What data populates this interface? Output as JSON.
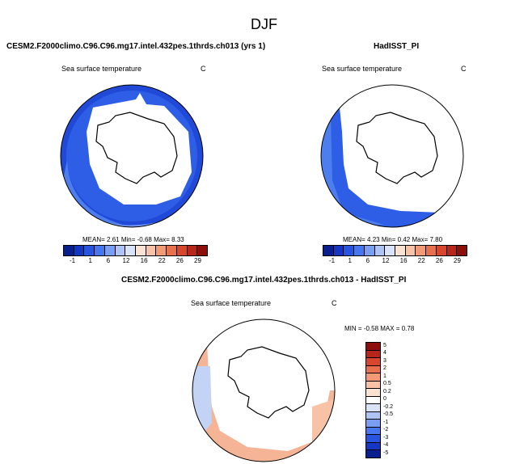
{
  "main_title": "DJF",
  "colors": {
    "land_outline": "#000000"
  },
  "panels": [
    {
      "title": "CESM2.F2000climo.C96.C96.mg17.intel.432pes.1thrds.ch013 (yrs 1)",
      "variable": "Sea surface temperature",
      "units": "C",
      "stats": {
        "mean_label": "MEAN=",
        "mean": "2.61",
        "min_label": "Min=",
        "min": "-0.68",
        "max_label": "Max=",
        "max": "8.33"
      }
    },
    {
      "title": "HadISST_PI",
      "variable": "Sea surface temperature",
      "units": "C",
      "stats": {
        "mean_label": "MEAN=",
        "mean": "4.23",
        "min_label": "Min=",
        "min": "0.42",
        "max_label": "Max=",
        "max": "7.80"
      }
    },
    {
      "title": "CESM2.F2000climo.C96.C96.mg17.intel.432pes.1thrds.ch013 - HadISST_PI",
      "variable": "Sea surface temperature",
      "units": "C",
      "stats": {
        "min_label": "MIN =",
        "min": "-0.58",
        "max_label": "MAX =",
        "max": "0.78"
      }
    }
  ],
  "colorbar_abs": {
    "labels": [
      "-1",
      "1",
      "6",
      "12",
      "16",
      "22",
      "26",
      "29"
    ],
    "colors": [
      "#0a1f8f",
      "#1536c0",
      "#2855e0",
      "#4677ee",
      "#7a9ef2",
      "#aec4f6",
      "#d9e4fa",
      "#fbe3d3",
      "#f7c2a5",
      "#f29a76",
      "#e8704e",
      "#d8472d",
      "#b8261a",
      "#8c0f0c"
    ]
  },
  "colorbar_diff": {
    "labels": [
      "5",
      "4",
      "3",
      "2",
      "1",
      "0.5",
      "0.2",
      "0",
      "-0.2",
      "-0.5",
      "-1",
      "-2",
      "-3",
      "-4",
      "-5"
    ],
    "colors": [
      "#8c0f0c",
      "#b8261a",
      "#d8472d",
      "#e8704e",
      "#f29a76",
      "#f7c2a5",
      "#fbe3d3",
      "#ffffff",
      "#d9e4fa",
      "#aec4f6",
      "#7a9ef2",
      "#4677ee",
      "#2855e0",
      "#1536c0",
      "#0a1f8f"
    ]
  }
}
